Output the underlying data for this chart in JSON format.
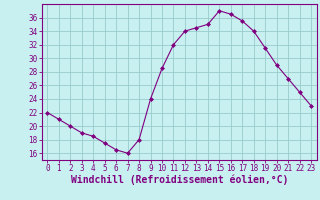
{
  "x": [
    0,
    1,
    2,
    3,
    4,
    5,
    6,
    7,
    8,
    9,
    10,
    11,
    12,
    13,
    14,
    15,
    16,
    17,
    18,
    19,
    20,
    21,
    22,
    23
  ],
  "y": [
    22,
    21,
    20,
    19,
    18.5,
    17.5,
    16.5,
    16,
    18,
    24,
    28.5,
    32,
    34,
    34.5,
    35,
    37,
    36.5,
    35.5,
    34,
    31.5,
    29,
    27,
    25,
    23
  ],
  "line_color": "#800080",
  "marker": "D",
  "marker_size": 2.0,
  "bg_color": "#c8f0f0",
  "grid_color": "#99cccc",
  "xlabel": "Windchill (Refroidissement éolien,°C)",
  "xlabel_color": "#800080",
  "ylim": [
    15,
    38
  ],
  "xlim": [
    -0.5,
    23.5
  ],
  "yticks": [
    16,
    18,
    20,
    22,
    24,
    26,
    28,
    30,
    32,
    34,
    36
  ],
  "xticks": [
    0,
    1,
    2,
    3,
    4,
    5,
    6,
    7,
    8,
    9,
    10,
    11,
    12,
    13,
    14,
    15,
    16,
    17,
    18,
    19,
    20,
    21,
    22,
    23
  ],
  "tick_color": "#800080",
  "tick_fontsize": 5.5,
  "xlabel_fontsize": 7.0,
  "spine_color": "#800080",
  "linewidth": 0.8
}
